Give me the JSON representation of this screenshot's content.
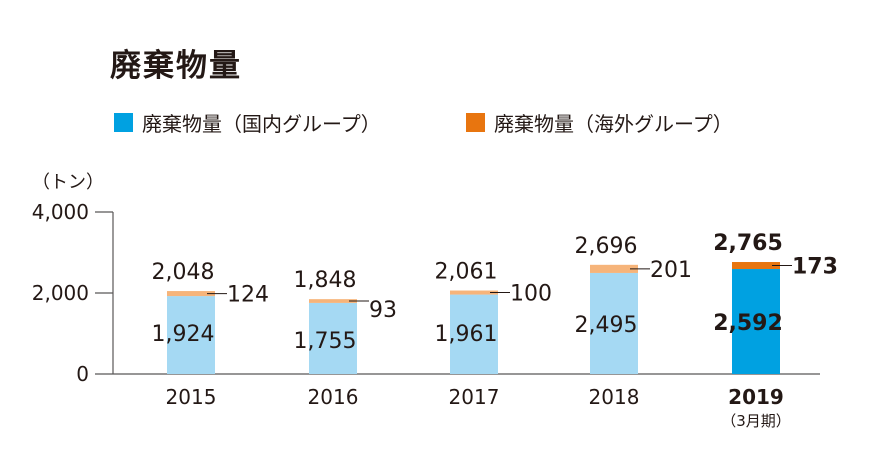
{
  "colors": {
    "domestic_past": "#a5d9f3",
    "overseas_past": "#f6b47a",
    "domestic_current": "#00a1e1",
    "overseas_current": "#e8750f",
    "axis": "#595757",
    "text": "#231815"
  },
  "chart_data": {
    "type": "bar",
    "stacked": true,
    "title": "廃棄物量",
    "unit_label": "（トン）",
    "categories": [
      "2015",
      "2016",
      "2017",
      "2018",
      "2019"
    ],
    "category_notes": [
      "",
      "",
      "",
      "",
      "（3月期）"
    ],
    "highlight_index": 4,
    "series": [
      {
        "name": "廃棄物量（国内グループ）",
        "values": [
          1924,
          1755,
          1961,
          2495,
          2592
        ]
      },
      {
        "name": "廃棄物量（海外グループ）",
        "values": [
          124,
          93,
          100,
          201,
          173
        ]
      }
    ],
    "totals": [
      2048,
      1848,
      2061,
      2696,
      2765
    ],
    "total_labels": [
      "2,048",
      "1,848",
      "2,061",
      "2,696",
      "2,765"
    ],
    "domestic_labels": [
      "1,924",
      "1,755",
      "1,961",
      "2,495",
      "2,592"
    ],
    "overseas_labels": [
      "124",
      "93",
      "100",
      "201",
      "173"
    ],
    "yticks": [
      0,
      2000,
      4000
    ],
    "ytick_labels": [
      "0",
      "2,000",
      "4,000"
    ],
    "ylim": [
      0,
      4000
    ],
    "grid": false,
    "legend_position": "top-left"
  }
}
